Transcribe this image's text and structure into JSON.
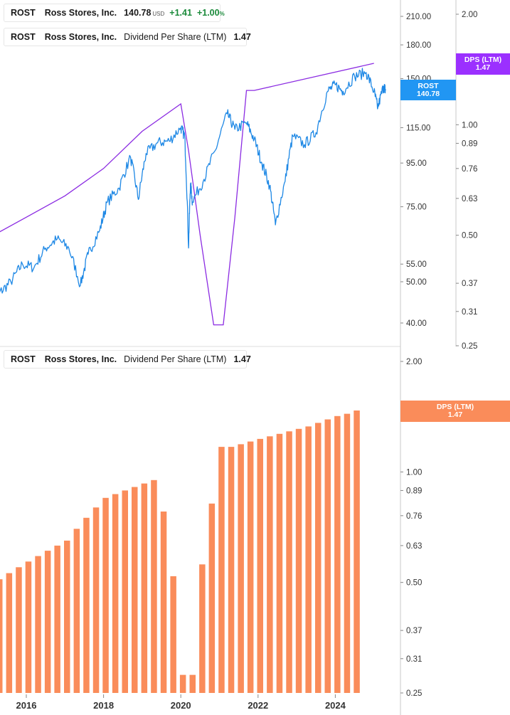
{
  "legend_top": {
    "symbol": "ROST",
    "company": "Ross Stores, Inc.",
    "price": "140.78",
    "currency": "USD",
    "change": "+1.41",
    "change_pct": "+1.00",
    "pct_sign": "%",
    "color": "#1e88e5"
  },
  "legend_dps_top": {
    "symbol": "ROST",
    "company": "Ross Stores, Inc.",
    "metric": "Dividend Per Share (LTM)",
    "value": "1.47",
    "color": "#8b2be2"
  },
  "legend_dps_bottom": {
    "symbol": "ROST",
    "company": "Ross Stores, Inc.",
    "metric": "Dividend Per Share (LTM)",
    "value": "1.47",
    "color": "#fa8c5a"
  },
  "tags": {
    "price": {
      "line1": "ROST",
      "line2": "140.78",
      "color": "#2196f3"
    },
    "dps_top": {
      "line1": "DPS (LTM)",
      "line2": "1.47",
      "color": "#9b30ff"
    },
    "dps_bottom": {
      "line1": "DPS (LTM)",
      "line2": "1.47",
      "color": "#fa8c5a"
    }
  },
  "chart_data": [
    {
      "type": "line",
      "series": [
        {
          "name": "ROST",
          "color": "#1e88e5",
          "x": [
            2015.0,
            2015.3,
            2015.6,
            2015.9,
            2016.2,
            2016.5,
            2016.8,
            2017.1,
            2017.4,
            2017.6,
            2017.9,
            2018.1,
            2018.4,
            2018.7,
            2018.9,
            2019.1,
            2019.4,
            2019.7,
            2020.0,
            2020.1,
            2020.2,
            2020.25,
            2020.3,
            2020.6,
            2020.9,
            2021.2,
            2021.4,
            2021.7,
            2021.9,
            2022.1,
            2022.3,
            2022.45,
            2022.7,
            2022.9,
            2023.2,
            2023.5,
            2023.8,
            2024.0,
            2024.2,
            2024.5,
            2024.8,
            2025.0,
            2025.1,
            2025.25,
            2025.3
          ],
          "y": [
            44,
            47,
            50,
            55,
            54,
            60,
            63,
            60,
            49,
            58,
            66,
            77,
            83,
            98,
            78,
            100,
            106,
            107,
            115,
            110,
            60,
            85,
            77,
            87,
            102,
            124,
            114,
            118,
            108,
            95,
            84,
            68,
            86,
            110,
            105,
            112,
            140,
            145,
            140,
            152,
            155,
            140,
            128,
            144,
            140.78
          ]
        },
        {
          "name": "Dividend Per Share (LTM)",
          "color": "#8b2be2",
          "x": [
            2015.0,
            2016.0,
            2017.0,
            2018.0,
            2019.0,
            2020.0,
            2020.2,
            2020.5,
            2020.85,
            2021.1,
            2021.4,
            2021.7,
            2021.9,
            2025.0
          ],
          "y": [
            0.49,
            0.56,
            0.64,
            0.76,
            0.96,
            1.14,
            0.85,
            0.5,
            0.285,
            0.285,
            0.56,
            1.24,
            1.24,
            1.47
          ]
        }
      ],
      "price_axis_ticks": [
        "210.00",
        "180.00",
        "150.00",
        "115.00",
        "95.00",
        "75.00",
        "55.00",
        "50.00",
        "40.00"
      ],
      "dps_axis_ticks": [
        "2.00",
        "1.00",
        "0.89",
        "0.76",
        "0.63",
        "0.50",
        "0.37",
        "0.31",
        "0.25"
      ]
    },
    {
      "type": "bar",
      "name": "Dividend Per Share (LTM)",
      "color": "#fa8c5a",
      "x": [
        2015.0,
        2015.25,
        2015.5,
        2015.75,
        2016.0,
        2016.25,
        2016.5,
        2016.75,
        2017.0,
        2017.25,
        2017.5,
        2017.75,
        2018.0,
        2018.25,
        2018.5,
        2018.75,
        2019.0,
        2019.25,
        2019.5,
        2019.75,
        2020.0,
        2020.25,
        2020.5,
        2020.75,
        2021.0,
        2021.25,
        2021.5,
        2021.75,
        2022.0,
        2022.25,
        2022.5,
        2022.75,
        2023.0,
        2023.25,
        2023.5,
        2023.75,
        2024.0,
        2024.25,
        2024.5,
        2024.75,
        2025.0,
        2025.25
      ],
      "values": [
        0.45,
        0.47,
        0.48,
        0.5,
        0.51,
        0.53,
        0.55,
        0.57,
        0.59,
        0.61,
        0.63,
        0.65,
        0.7,
        0.75,
        0.8,
        0.85,
        0.87,
        0.89,
        0.91,
        0.93,
        0.95,
        0.78,
        0.52,
        0.28,
        0.28,
        0.56,
        0.82,
        1.17,
        1.17,
        1.19,
        1.21,
        1.23,
        1.25,
        1.27,
        1.29,
        1.31,
        1.33,
        1.36,
        1.39,
        1.42,
        1.44,
        1.47
      ],
      "axis_ticks": [
        "2.00",
        "1.00",
        "0.89",
        "0.76",
        "0.63",
        "0.50",
        "0.37",
        "0.31",
        "0.25"
      ],
      "x_ticks": [
        "2016",
        "2018",
        "2020",
        "2022",
        "2024"
      ],
      "y_scale": "log"
    }
  ]
}
